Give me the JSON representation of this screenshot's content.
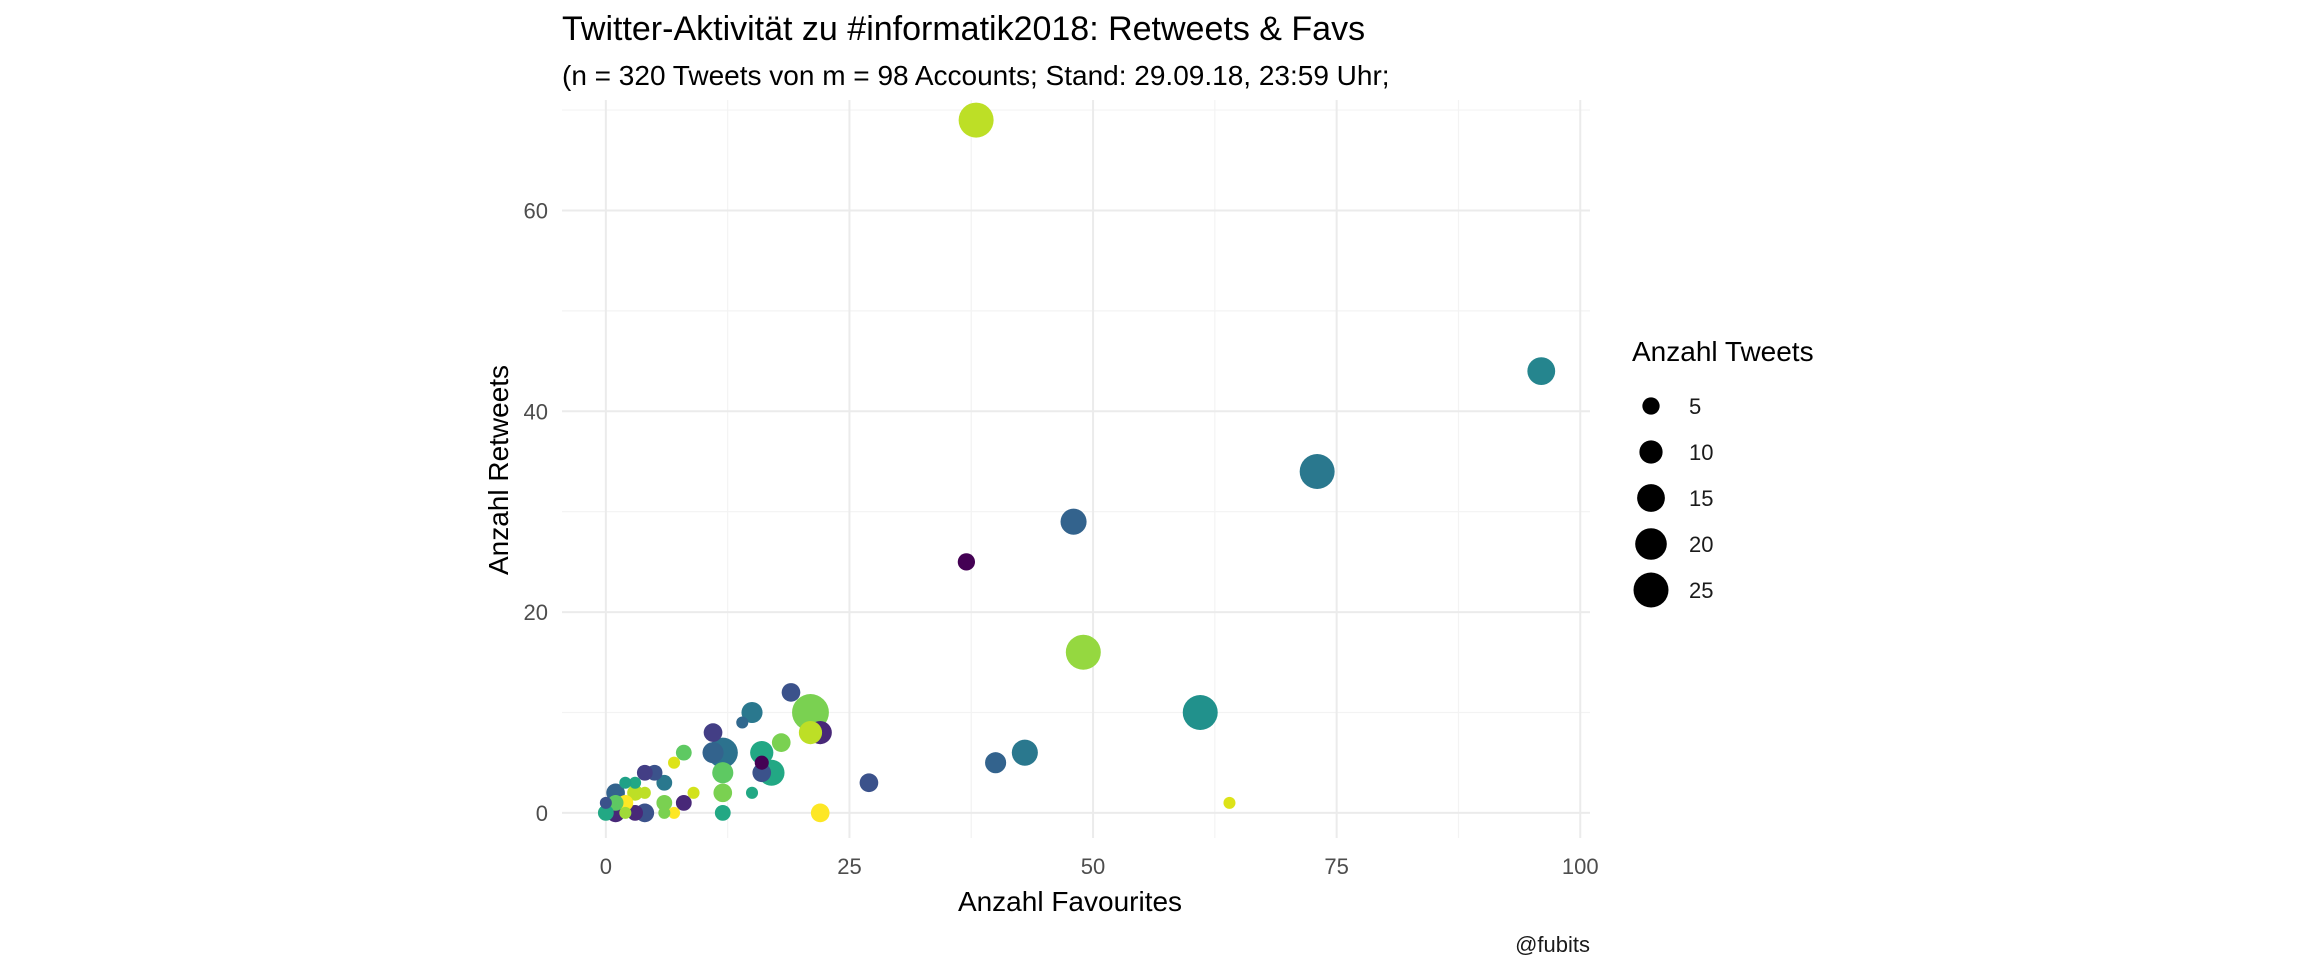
{
  "chart_data": {
    "type": "scatter",
    "title": "Twitter-Aktivität zu #informatik2018: Retweets & Favs",
    "subtitle": "(n = 320 Tweets von m = 98 Accounts; Stand: 29.09.18, 23:59 Uhr;",
    "xlabel": "Anzahl Favourites",
    "ylabel": "Anzahl Retweets",
    "caption": "@fubits",
    "xlim": [
      -4.5,
      101
    ],
    "ylim": [
      -2.5,
      71
    ],
    "x_ticks": [
      0,
      25,
      50,
      75,
      100
    ],
    "y_ticks": [
      0,
      20,
      40,
      60
    ],
    "grid": true,
    "color_scale": "viridis",
    "legend": {
      "title": "Anzahl Tweets",
      "position": "right",
      "sizes": [
        5,
        10,
        15,
        20,
        25
      ]
    },
    "points": [
      {
        "x": 38,
        "y": 69,
        "size": 25,
        "color": "#bddf26"
      },
      {
        "x": 96,
        "y": 44,
        "size": 15,
        "color": "#25858e"
      },
      {
        "x": 73,
        "y": 34,
        "size": 25,
        "color": "#2a788e"
      },
      {
        "x": 48,
        "y": 29,
        "size": 13,
        "color": "#33638d"
      },
      {
        "x": 37,
        "y": 25,
        "size": 5,
        "color": "#440154"
      },
      {
        "x": 49,
        "y": 16,
        "size": 25,
        "color": "#95d840"
      },
      {
        "x": 61,
        "y": 10,
        "size": 25,
        "color": "#21918c"
      },
      {
        "x": 64,
        "y": 1,
        "size": 2,
        "color": "#dde318"
      },
      {
        "x": 43,
        "y": 6,
        "size": 13,
        "color": "#2a788e"
      },
      {
        "x": 40,
        "y": 5,
        "size": 8,
        "color": "#33638d"
      },
      {
        "x": 27,
        "y": 3,
        "size": 6,
        "color": "#3b528b"
      },
      {
        "x": 21,
        "y": 10,
        "size": 28,
        "color": "#7ad151"
      },
      {
        "x": 22,
        "y": 8,
        "size": 10,
        "color": "#482878"
      },
      {
        "x": 21,
        "y": 8,
        "size": 10,
        "color": "#bddf26"
      },
      {
        "x": 22,
        "y": 0,
        "size": 6,
        "color": "#fde725"
      },
      {
        "x": 19,
        "y": 12,
        "size": 6,
        "color": "#3b528b"
      },
      {
        "x": 18,
        "y": 7,
        "size": 6,
        "color": "#7ad151"
      },
      {
        "x": 17,
        "y": 4,
        "size": 13,
        "color": "#22a884"
      },
      {
        "x": 16,
        "y": 6,
        "size": 10,
        "color": "#22a884"
      },
      {
        "x": 16,
        "y": 5,
        "size": 3,
        "color": "#440154"
      },
      {
        "x": 16,
        "y": 4,
        "size": 6,
        "color": "#3b528b"
      },
      {
        "x": 15,
        "y": 10,
        "size": 8,
        "color": "#2a788e"
      },
      {
        "x": 15,
        "y": 2,
        "size": 2,
        "color": "#22a884"
      },
      {
        "x": 14,
        "y": 9,
        "size": 2,
        "color": "#31688e"
      },
      {
        "x": 12,
        "y": 6,
        "size": 18,
        "color": "#2c728e"
      },
      {
        "x": 11,
        "y": 6,
        "size": 8,
        "color": "#33638d"
      },
      {
        "x": 11,
        "y": 8,
        "size": 6,
        "color": "#433e85"
      },
      {
        "x": 12,
        "y": 4,
        "size": 8,
        "color": "#5ec962"
      },
      {
        "x": 12,
        "y": 2,
        "size": 6,
        "color": "#7ad151"
      },
      {
        "x": 12,
        "y": 0,
        "size": 4,
        "color": "#22a884"
      },
      {
        "x": 9,
        "y": 2,
        "size": 2,
        "color": "#d2e21b"
      },
      {
        "x": 8,
        "y": 6,
        "size": 4,
        "color": "#5ec962"
      },
      {
        "x": 8,
        "y": 1,
        "size": 4,
        "color": "#482878"
      },
      {
        "x": 7,
        "y": 5,
        "size": 2,
        "color": "#dde318"
      },
      {
        "x": 7,
        "y": 0,
        "size": 2,
        "color": "#fde725"
      },
      {
        "x": 6,
        "y": 3,
        "size": 4,
        "color": "#2a788e"
      },
      {
        "x": 6,
        "y": 1,
        "size": 4,
        "color": "#7ad151"
      },
      {
        "x": 6,
        "y": 0,
        "size": 2,
        "color": "#7ad151"
      },
      {
        "x": 5,
        "y": 4,
        "size": 4,
        "color": "#3b528b"
      },
      {
        "x": 4,
        "y": 4,
        "size": 4,
        "color": "#433e85"
      },
      {
        "x": 4,
        "y": 0,
        "size": 6,
        "color": "#3b528b"
      },
      {
        "x": 4,
        "y": 2,
        "size": 2,
        "color": "#bddf26"
      },
      {
        "x": 3,
        "y": 0,
        "size": 4,
        "color": "#482878"
      },
      {
        "x": 3,
        "y": 3,
        "size": 2,
        "color": "#22a884"
      },
      {
        "x": 3,
        "y": 2,
        "size": 4,
        "color": "#bddf26"
      },
      {
        "x": 2,
        "y": 3,
        "size": 2,
        "color": "#1fa187"
      },
      {
        "x": 2,
        "y": 1,
        "size": 4,
        "color": "#fde725"
      },
      {
        "x": 2,
        "y": 0,
        "size": 2,
        "color": "#a0da39"
      },
      {
        "x": 1,
        "y": 2,
        "size": 6,
        "color": "#33638d"
      },
      {
        "x": 1,
        "y": 1,
        "size": 4,
        "color": "#5ec962"
      },
      {
        "x": 1,
        "y": 0,
        "size": 6,
        "color": "#482878"
      },
      {
        "x": 0,
        "y": 1,
        "size": 2,
        "color": "#3b528b"
      },
      {
        "x": 0,
        "y": 0,
        "size": 4,
        "color": "#22a884"
      }
    ]
  }
}
